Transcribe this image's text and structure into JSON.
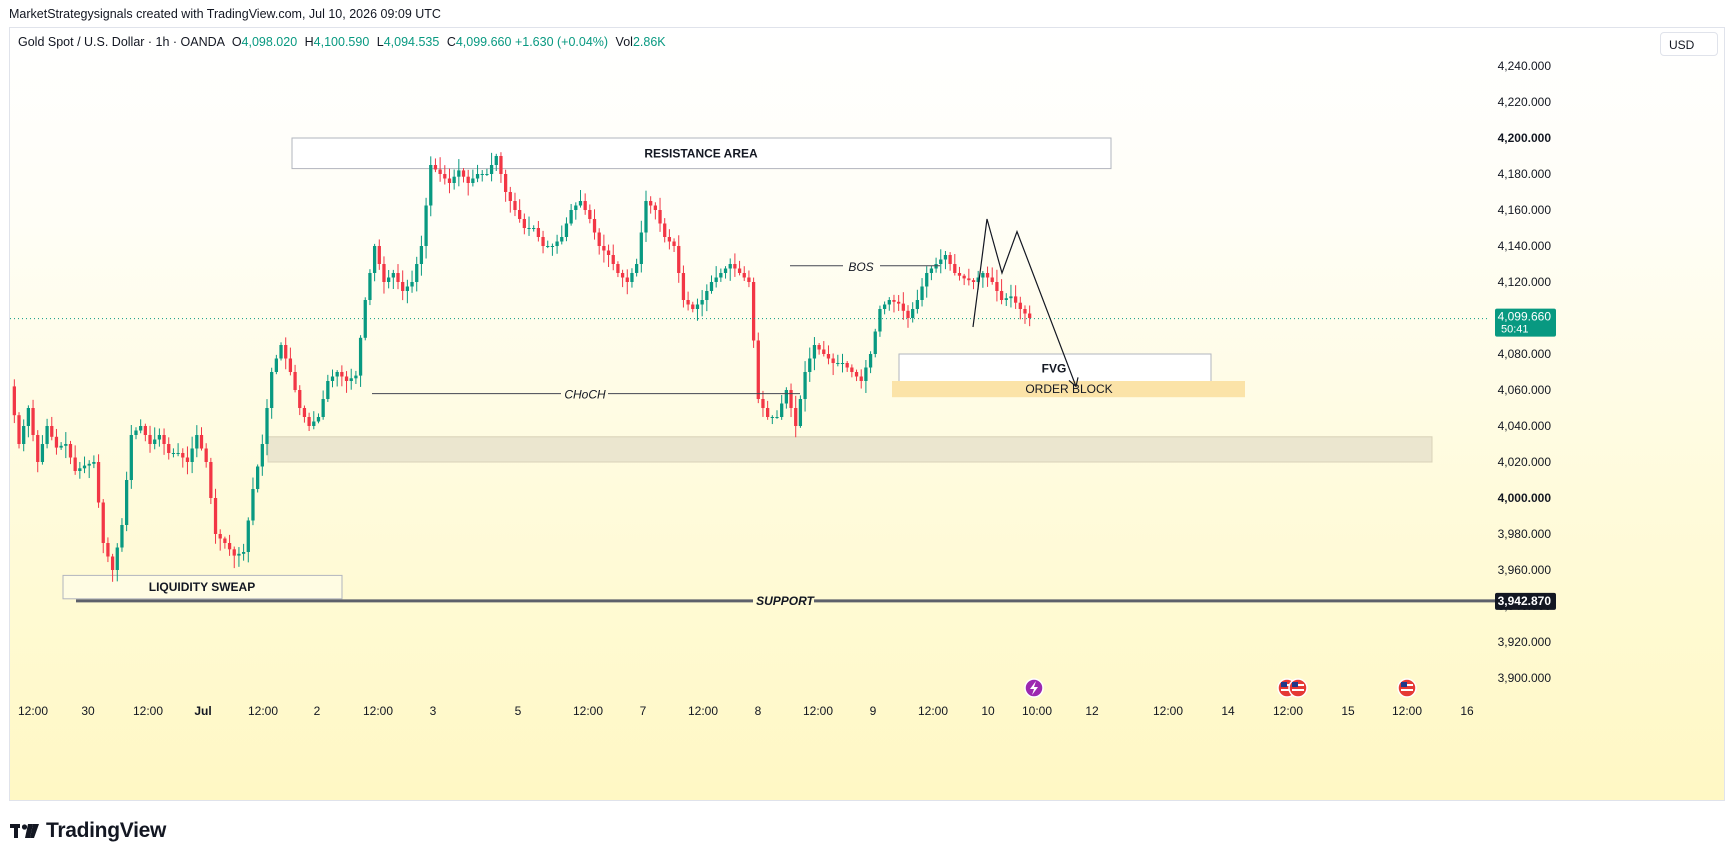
{
  "header": {
    "attribution": "MarketStrategysignals created with TradingView.com, Jul 10, 2026 09:09 UTC"
  },
  "legend": {
    "symbol": "Gold Spot / U.S. Dollar · 1h · OANDA",
    "o_key": "O",
    "open": "4,098.020",
    "h_key": "H",
    "high": "4,100.590",
    "l_key": "L",
    "low": "4,094.535",
    "c_key": "C",
    "close": "4,099.660",
    "change": "+1.630 (+0.04%)",
    "vol_key": "Vol",
    "volume": "2.86K"
  },
  "currency": "USD",
  "price_tag": {
    "price": "4,099.660",
    "countdown": "50:41",
    "color": "#089981"
  },
  "support_tag": {
    "price": "3,942.870"
  },
  "brand": {
    "name": "TradingView"
  },
  "colors": {
    "up": "#089981",
    "down": "#f23645",
    "resistance_box": "#ffffff",
    "order_block": "#fbe3a8",
    "demand_zone": "#ebe6cf",
    "line": "#434651"
  },
  "chart_data": {
    "type": "candlestick",
    "symbol": "Gold Spot / U.S. Dollar",
    "interval": "1h",
    "y_axis": {
      "range": [
        3890,
        4250
      ],
      "ticks": [
        "4,240.000",
        "4,220.000",
        "4,200.000",
        "4,180.000",
        "4,160.000",
        "4,140.000",
        "4,120.000",
        "4,100.000",
        "4,080.000",
        "4,060.000",
        "4,040.000",
        "4,020.000",
        "4,000.000",
        "3,980.000",
        "3,960.000",
        "3,940.000",
        "3,920.000",
        "3,900.000"
      ],
      "tick_values": [
        4240,
        4220,
        4200,
        4180,
        4160,
        4140,
        4120,
        4100,
        4080,
        4060,
        4040,
        4020,
        4000,
        3980,
        3960,
        3940,
        3920,
        3900
      ]
    },
    "x_axis": {
      "labels": [
        "12:00",
        "30",
        "12:00",
        "Jul",
        "12:00",
        "2",
        "12:00",
        "3",
        "5",
        "12:00",
        "7",
        "12:00",
        "8",
        "12:00",
        "9",
        "12:00",
        "10",
        "10:00",
        "12",
        "12:00",
        "14",
        "12:00",
        "15",
        "12:00",
        "16"
      ],
      "bold": [
        "Jul"
      ]
    },
    "last_price": 4099.66,
    "support_level": 3942.87,
    "price_path": [
      [
        0,
        4062
      ],
      [
        5,
        4030
      ],
      [
        10,
        4050
      ],
      [
        15,
        4020
      ],
      [
        20,
        4040
      ],
      [
        25,
        4028
      ],
      [
        30,
        4030
      ],
      [
        35,
        4015
      ],
      [
        40,
        4018
      ],
      [
        45,
        4020
      ],
      [
        50,
        3975
      ],
      [
        55,
        3960
      ],
      [
        60,
        3985
      ],
      [
        65,
        4035
      ],
      [
        70,
        4040
      ],
      [
        75,
        4030
      ],
      [
        80,
        4035
      ],
      [
        85,
        4025
      ],
      [
        90,
        4025
      ],
      [
        95,
        4020
      ],
      [
        100,
        4035
      ],
      [
        105,
        4020
      ],
      [
        110,
        3980
      ],
      [
        115,
        3975
      ],
      [
        120,
        3968
      ],
      [
        125,
        3970
      ],
      [
        130,
        4005
      ],
      [
        135,
        4030
      ],
      [
        140,
        4070
      ],
      [
        145,
        4085
      ],
      [
        150,
        4070
      ],
      [
        155,
        4050
      ],
      [
        160,
        4040
      ],
      [
        165,
        4045
      ],
      [
        170,
        4065
      ],
      [
        175,
        4070
      ],
      [
        180,
        4065
      ],
      [
        185,
        4068
      ],
      [
        190,
        4110
      ],
      [
        195,
        4140
      ],
      [
        200,
        4120
      ],
      [
        205,
        4125
      ],
      [
        210,
        4115
      ],
      [
        215,
        4120
      ],
      [
        220,
        4140
      ],
      [
        225,
        4185
      ],
      [
        230,
        4180
      ],
      [
        235,
        4175
      ],
      [
        240,
        4182
      ],
      [
        245,
        4175
      ],
      [
        250,
        4180
      ],
      [
        255,
        4180
      ],
      [
        260,
        4190
      ],
      [
        265,
        4170
      ],
      [
        270,
        4160
      ],
      [
        275,
        4150
      ],
      [
        280,
        4150
      ],
      [
        285,
        4140
      ],
      [
        290,
        4140
      ],
      [
        295,
        4145
      ],
      [
        300,
        4160
      ],
      [
        305,
        4165
      ],
      [
        310,
        4155
      ],
      [
        315,
        4140
      ],
      [
        320,
        4135
      ],
      [
        325,
        4125
      ],
      [
        330,
        4120
      ],
      [
        335,
        4130
      ],
      [
        340,
        4165
      ],
      [
        345,
        4160
      ],
      [
        350,
        4145
      ],
      [
        355,
        4140
      ],
      [
        360,
        4110
      ],
      [
        365,
        4105
      ],
      [
        370,
        4110
      ],
      [
        375,
        4120
      ],
      [
        380,
        4125
      ],
      [
        385,
        4130
      ],
      [
        390,
        4125
      ],
      [
        395,
        4120
      ],
      [
        400,
        4055
      ],
      [
        405,
        4045
      ],
      [
        410,
        4045
      ],
      [
        415,
        4060
      ],
      [
        420,
        4040
      ],
      [
        425,
        4070
      ],
      [
        430,
        4085
      ],
      [
        435,
        4080
      ],
      [
        440,
        4075
      ],
      [
        445,
        4075
      ],
      [
        450,
        4070
      ],
      [
        455,
        4065
      ],
      [
        460,
        4080
      ],
      [
        465,
        4105
      ],
      [
        470,
        4110
      ],
      [
        475,
        4108
      ],
      [
        480,
        4100
      ],
      [
        485,
        4110
      ],
      [
        490,
        4125
      ],
      [
        495,
        4130
      ],
      [
        500,
        4135
      ],
      [
        505,
        4125
      ],
      [
        510,
        4122
      ],
      [
        515,
        4120
      ],
      [
        520,
        4125
      ],
      [
        525,
        4120
      ],
      [
        530,
        4110
      ],
      [
        535,
        4112
      ],
      [
        540,
        4105
      ],
      [
        545,
        4100
      ]
    ],
    "annotations": [
      {
        "label": "RESISTANCE AREA",
        "kind": "zone",
        "price_range": [
          4183,
          4200
        ]
      },
      {
        "label": "BOS",
        "kind": "level",
        "price": 4129
      },
      {
        "label": "CHoCH",
        "kind": "level",
        "price": 4058
      },
      {
        "label": "FVG",
        "kind": "zone",
        "price_range": [
          4064,
          4080
        ]
      },
      {
        "label": "ORDER BLOCK",
        "kind": "zone",
        "price_range": [
          4056,
          4065
        ]
      },
      {
        "label": "LIQUIDITY SWEAP",
        "kind": "zone",
        "price_range": [
          3944,
          3957
        ]
      },
      {
        "label": "SUPPORT",
        "kind": "level",
        "price": 3942.87
      },
      {
        "label": "",
        "kind": "demand_zone",
        "price_range": [
          4020,
          4034
        ]
      }
    ],
    "projection_path": [
      [
        4095,
        4120
      ],
      [
        4155,
        4152
      ],
      [
        4125,
        4128
      ],
      [
        4148,
        4150
      ],
      [
        4062,
        4060
      ]
    ]
  }
}
